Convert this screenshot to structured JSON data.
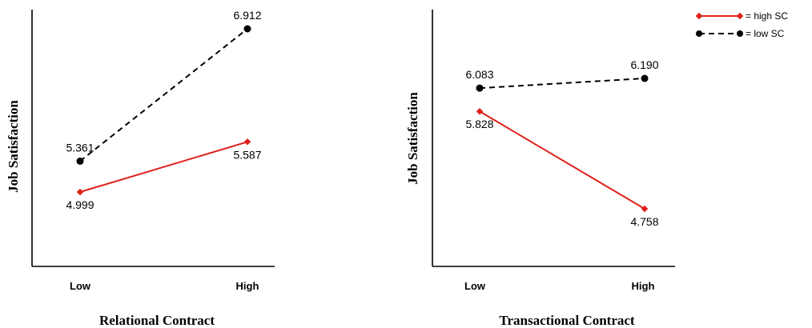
{
  "chart_data": [
    {
      "type": "line",
      "xlabel": "Relational Contract",
      "ylabel": "Job Satisfaction",
      "categories": [
        "Low",
        "High"
      ],
      "series": [
        {
          "name": "high SC",
          "values": [
            4.999,
            5.587
          ],
          "color": "#e0201b",
          "style": "solid",
          "marker": "diamond"
        },
        {
          "name": "low SC",
          "values": [
            5.361,
            6.912
          ],
          "color": "#000000",
          "style": "dashed",
          "marker": "circle"
        }
      ],
      "data_labels": [
        {
          "series": "high SC",
          "index": 0,
          "text": "4.999",
          "position": "below"
        },
        {
          "series": "high SC",
          "index": 1,
          "text": "5.587",
          "position": "below"
        },
        {
          "series": "low SC",
          "index": 0,
          "text": "5.361",
          "position": "above"
        },
        {
          "series": "low SC",
          "index": 1,
          "text": "6.912",
          "position": "above"
        }
      ]
    },
    {
      "type": "line",
      "xlabel": "Transactional Contract",
      "ylabel": "Job Satisfaction",
      "categories": [
        "Low",
        "High"
      ],
      "series": [
        {
          "name": "high SC",
          "values": [
            5.828,
            4.758
          ],
          "color": "#e0201b",
          "style": "solid",
          "marker": "diamond"
        },
        {
          "name": "low SC",
          "values": [
            6.083,
            6.19
          ],
          "color": "#000000",
          "style": "dashed",
          "marker": "circle"
        }
      ],
      "data_labels": [
        {
          "series": "high SC",
          "index": 0,
          "text": "5.828",
          "position": "below"
        },
        {
          "series": "high SC",
          "index": 1,
          "text": "4.758",
          "position": "below"
        },
        {
          "series": "low SC",
          "index": 0,
          "text": "6.083",
          "position": "above"
        },
        {
          "series": "low SC",
          "index": 1,
          "text": "6.190",
          "position": "above"
        }
      ]
    }
  ],
  "legend": {
    "placement": "top-right",
    "items": [
      {
        "label": "= high SC",
        "color": "#e0201b",
        "style": "solid",
        "marker": "diamond"
      },
      {
        "label": "= low SC",
        "color": "#000000",
        "style": "dashed",
        "marker": "circle"
      }
    ]
  }
}
